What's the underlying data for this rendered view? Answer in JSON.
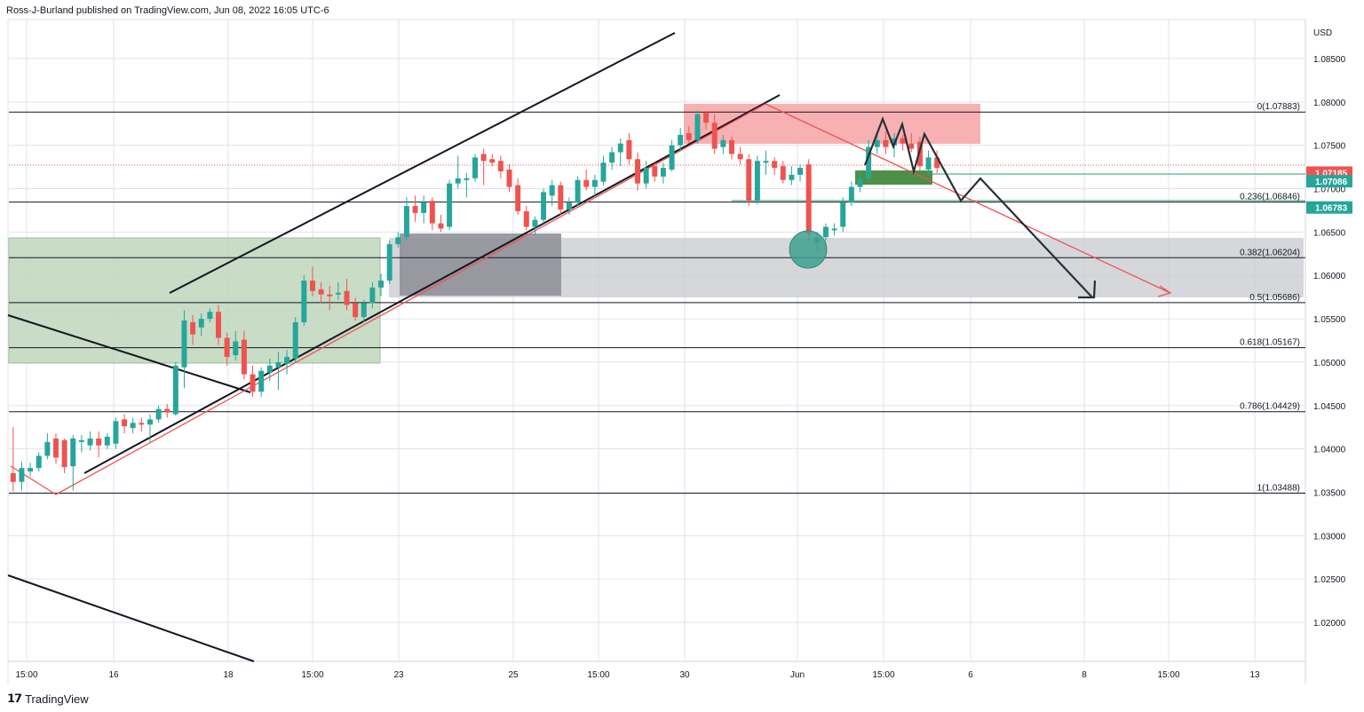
{
  "header": {
    "publisher_line": "Ross-J-Burland published on TradingView.com, Jun 08, 2022 16:05 UTC-6"
  },
  "footer": {
    "brand": "TradingView"
  },
  "axis": {
    "currency": "USD"
  },
  "colors": {
    "bull": "#26a69a",
    "bear": "#ef5350",
    "grid": "#e0e3eb",
    "fib_line": "#131722"
  },
  "chart_data": {
    "type": "candlestick",
    "instrument_currency": "USD",
    "y_range": [
      1.0155,
      1.0895
    ],
    "y_ticks": [
      "1.08500",
      "1.08000",
      "1.07500",
      "1.07000",
      "1.06500",
      "1.06000",
      "1.05500",
      "1.05000",
      "1.04500",
      "1.04000",
      "1.03500",
      "1.03000",
      "1.02500",
      "1.02000"
    ],
    "x_ticks": [
      "15:00",
      "16",
      "18",
      "15:00",
      "23",
      "25",
      "15:00",
      "30",
      "Jun",
      "15:00",
      "6",
      "8",
      "15:00",
      "13"
    ],
    "price_badges": [
      {
        "label": "1.07185",
        "value": 1.07185,
        "color": "#ef5350"
      },
      {
        "label": "1.07086",
        "value": 1.07086,
        "color": "#26a69a"
      },
      {
        "label": "1.06783",
        "value": 1.06783,
        "color": "#26a69a"
      }
    ],
    "fib_levels": [
      {
        "label": "0(1.07883)",
        "value": 1.07883
      },
      {
        "label": "0.236(1.06846)",
        "value": 1.06846
      },
      {
        "label": "0.382(1.06204)",
        "value": 1.06204
      },
      {
        "label": "0.5(1.05686)",
        "value": 1.05686
      },
      {
        "label": "0.618(1.05167)",
        "value": 1.05167
      },
      {
        "label": "0.786(1.04429)",
        "value": 1.04429
      },
      {
        "label": "1(1.03488)",
        "value": 1.03488
      }
    ],
    "candles": [
      {
        "o": 1.0372,
        "h": 1.0425,
        "l": 1.0351,
        "c": 1.0362
      },
      {
        "o": 1.0362,
        "h": 1.0385,
        "l": 1.0352,
        "c": 1.0378
      },
      {
        "o": 1.0374,
        "h": 1.0384,
        "l": 1.0368,
        "c": 1.0378
      },
      {
        "o": 1.0378,
        "h": 1.0396,
        "l": 1.0374,
        "c": 1.0392
      },
      {
        "o": 1.0392,
        "h": 1.0418,
        "l": 1.0388,
        "c": 1.0408
      },
      {
        "o": 1.0412,
        "h": 1.0418,
        "l": 1.0383,
        "c": 1.039
      },
      {
        "o": 1.041,
        "h": 1.0412,
        "l": 1.0372,
        "c": 1.0379
      },
      {
        "o": 1.038,
        "h": 1.0416,
        "l": 1.0352,
        "c": 1.0412
      },
      {
        "o": 1.0408,
        "h": 1.0416,
        "l": 1.0396,
        "c": 1.041
      },
      {
        "o": 1.0404,
        "h": 1.042,
        "l": 1.0398,
        "c": 1.0412
      },
      {
        "o": 1.0412,
        "h": 1.042,
        "l": 1.039,
        "c": 1.0404
      },
      {
        "o": 1.0404,
        "h": 1.0418,
        "l": 1.04,
        "c": 1.0414
      },
      {
        "o": 1.0406,
        "h": 1.0436,
        "l": 1.04,
        "c": 1.0432
      },
      {
        "o": 1.0434,
        "h": 1.044,
        "l": 1.0418,
        "c": 1.0426
      },
      {
        "o": 1.0424,
        "h": 1.0436,
        "l": 1.0418,
        "c": 1.043
      },
      {
        "o": 1.043,
        "h": 1.0436,
        "l": 1.042,
        "c": 1.0428
      },
      {
        "o": 1.0428,
        "h": 1.044,
        "l": 1.0408,
        "c": 1.0434
      },
      {
        "o": 1.0434,
        "h": 1.045,
        "l": 1.043,
        "c": 1.0446
      },
      {
        "o": 1.0446,
        "h": 1.0452,
        "l": 1.0436,
        "c": 1.0442
      },
      {
        "o": 1.044,
        "h": 1.05,
        "l": 1.0438,
        "c": 1.0496
      },
      {
        "o": 1.0494,
        "h": 1.056,
        "l": 1.047,
        "c": 1.0548
      },
      {
        "o": 1.0546,
        "h": 1.0554,
        "l": 1.052,
        "c": 1.0532
      },
      {
        "o": 1.054,
        "h": 1.0556,
        "l": 1.053,
        "c": 1.055
      },
      {
        "o": 1.055,
        "h": 1.0562,
        "l": 1.0546,
        "c": 1.0558
      },
      {
        "o": 1.0558,
        "h": 1.0566,
        "l": 1.052,
        "c": 1.0528
      },
      {
        "o": 1.0528,
        "h": 1.0534,
        "l": 1.0496,
        "c": 1.0506
      },
      {
        "o": 1.0508,
        "h": 1.0536,
        "l": 1.0502,
        "c": 1.0524
      },
      {
        "o": 1.0526,
        "h": 1.0536,
        "l": 1.048,
        "c": 1.0486
      },
      {
        "o": 1.0486,
        "h": 1.0496,
        "l": 1.046,
        "c": 1.0466
      },
      {
        "o": 1.0466,
        "h": 1.0494,
        "l": 1.046,
        "c": 1.049
      },
      {
        "o": 1.0488,
        "h": 1.0504,
        "l": 1.0478,
        "c": 1.0496
      },
      {
        "o": 1.0494,
        "h": 1.0512,
        "l": 1.0468,
        "c": 1.05
      },
      {
        "o": 1.0498,
        "h": 1.0514,
        "l": 1.0486,
        "c": 1.0506
      },
      {
        "o": 1.0504,
        "h": 1.0552,
        "l": 1.05,
        "c": 1.0546
      },
      {
        "o": 1.0546,
        "h": 1.06,
        "l": 1.0542,
        "c": 1.0594
      },
      {
        "o": 1.0594,
        "h": 1.061,
        "l": 1.0576,
        "c": 1.0582
      },
      {
        "o": 1.0584,
        "h": 1.0592,
        "l": 1.0568,
        "c": 1.0578
      },
      {
        "o": 1.0578,
        "h": 1.0588,
        "l": 1.056,
        "c": 1.0576
      },
      {
        "o": 1.0578,
        "h": 1.0592,
        "l": 1.0572,
        "c": 1.058
      },
      {
        "o": 1.0582,
        "h": 1.0596,
        "l": 1.056,
        "c": 1.0566
      },
      {
        "o": 1.0568,
        "h": 1.0574,
        "l": 1.0548,
        "c": 1.0552
      },
      {
        "o": 1.0552,
        "h": 1.0572,
        "l": 1.0546,
        "c": 1.0568
      },
      {
        "o": 1.0568,
        "h": 1.0592,
        "l": 1.0562,
        "c": 1.0586
      },
      {
        "o": 1.0586,
        "h": 1.0602,
        "l": 1.0576,
        "c": 1.0594
      },
      {
        "o": 1.0594,
        "h": 1.064,
        "l": 1.059,
        "c": 1.0636
      },
      {
        "o": 1.0636,
        "h": 1.065,
        "l": 1.0632,
        "c": 1.0644
      },
      {
        "o": 1.0644,
        "h": 1.069,
        "l": 1.064,
        "c": 1.068
      },
      {
        "o": 1.068,
        "h": 1.0692,
        "l": 1.0662,
        "c": 1.0672
      },
      {
        "o": 1.0672,
        "h": 1.0692,
        "l": 1.066,
        "c": 1.0684
      },
      {
        "o": 1.0686,
        "h": 1.069,
        "l": 1.0652,
        "c": 1.066
      },
      {
        "o": 1.066,
        "h": 1.067,
        "l": 1.065,
        "c": 1.0654
      },
      {
        "o": 1.0656,
        "h": 1.071,
        "l": 1.0652,
        "c": 1.0706
      },
      {
        "o": 1.0706,
        "h": 1.0738,
        "l": 1.07,
        "c": 1.0712
      },
      {
        "o": 1.071,
        "h": 1.0718,
        "l": 1.069,
        "c": 1.0712
      },
      {
        "o": 1.0712,
        "h": 1.074,
        "l": 1.0708,
        "c": 1.0736
      },
      {
        "o": 1.074,
        "h": 1.0746,
        "l": 1.0704,
        "c": 1.0732
      },
      {
        "o": 1.0734,
        "h": 1.074,
        "l": 1.0726,
        "c": 1.073
      },
      {
        "o": 1.0732,
        "h": 1.0738,
        "l": 1.0712,
        "c": 1.072
      },
      {
        "o": 1.0722,
        "h": 1.0728,
        "l": 1.0696,
        "c": 1.0702
      },
      {
        "o": 1.0704,
        "h": 1.0712,
        "l": 1.067,
        "c": 1.0674
      },
      {
        "o": 1.0674,
        "h": 1.068,
        "l": 1.0652,
        "c": 1.0656
      },
      {
        "o": 1.0656,
        "h": 1.0668,
        "l": 1.0646,
        "c": 1.0664
      },
      {
        "o": 1.0664,
        "h": 1.07,
        "l": 1.066,
        "c": 1.0696
      },
      {
        "o": 1.0692,
        "h": 1.071,
        "l": 1.068,
        "c": 1.0704
      },
      {
        "o": 1.0704,
        "h": 1.0708,
        "l": 1.067,
        "c": 1.0676
      },
      {
        "o": 1.0676,
        "h": 1.069,
        "l": 1.067,
        "c": 1.0684
      },
      {
        "o": 1.0684,
        "h": 1.0714,
        "l": 1.068,
        "c": 1.071
      },
      {
        "o": 1.071,
        "h": 1.0722,
        "l": 1.0698,
        "c": 1.0702
      },
      {
        "o": 1.0702,
        "h": 1.0716,
        "l": 1.069,
        "c": 1.071
      },
      {
        "o": 1.0708,
        "h": 1.0738,
        "l": 1.0704,
        "c": 1.073
      },
      {
        "o": 1.073,
        "h": 1.0748,
        "l": 1.0722,
        "c": 1.0742
      },
      {
        "o": 1.0742,
        "h": 1.0758,
        "l": 1.0726,
        "c": 1.0752
      },
      {
        "o": 1.0756,
        "h": 1.0764,
        "l": 1.0728,
        "c": 1.0734
      },
      {
        "o": 1.0734,
        "h": 1.0742,
        "l": 1.0698,
        "c": 1.0706
      },
      {
        "o": 1.0706,
        "h": 1.0732,
        "l": 1.07,
        "c": 1.0724
      },
      {
        "o": 1.0726,
        "h": 1.073,
        "l": 1.0708,
        "c": 1.0714
      },
      {
        "o": 1.0714,
        "h": 1.073,
        "l": 1.0706,
        "c": 1.0724
      },
      {
        "o": 1.0722,
        "h": 1.0756,
        "l": 1.072,
        "c": 1.075
      },
      {
        "o": 1.075,
        "h": 1.077,
        "l": 1.0744,
        "c": 1.0762
      },
      {
        "o": 1.0764,
        "h": 1.0772,
        "l": 1.0752,
        "c": 1.0756
      },
      {
        "o": 1.0756,
        "h": 1.079,
        "l": 1.0752,
        "c": 1.0786
      },
      {
        "o": 1.0788,
        "h": 1.079,
        "l": 1.0768,
        "c": 1.0776
      },
      {
        "o": 1.0776,
        "h": 1.0786,
        "l": 1.074,
        "c": 1.0746
      },
      {
        "o": 1.0748,
        "h": 1.0762,
        "l": 1.074,
        "c": 1.0756
      },
      {
        "o": 1.0756,
        "h": 1.076,
        "l": 1.0734,
        "c": 1.074
      },
      {
        "o": 1.074,
        "h": 1.0748,
        "l": 1.0728,
        "c": 1.0734
      },
      {
        "o": 1.0734,
        "h": 1.074,
        "l": 1.068,
        "c": 1.0686
      },
      {
        "o": 1.0686,
        "h": 1.0738,
        "l": 1.0682,
        "c": 1.0732
      },
      {
        "o": 1.073,
        "h": 1.0744,
        "l": 1.0716,
        "c": 1.0732
      },
      {
        "o": 1.0732,
        "h": 1.0736,
        "l": 1.0716,
        "c": 1.0724
      },
      {
        "o": 1.0726,
        "h": 1.0732,
        "l": 1.0706,
        "c": 1.071
      },
      {
        "o": 1.071,
        "h": 1.0726,
        "l": 1.0704,
        "c": 1.0716
      },
      {
        "o": 1.0716,
        "h": 1.0728,
        "l": 1.0708,
        "c": 1.0724
      },
      {
        "o": 1.0728,
        "h": 1.0734,
        "l": 1.064,
        "c": 1.0648
      },
      {
        "o": 1.0638,
        "h": 1.065,
        "l": 1.0628,
        "c": 1.0644
      },
      {
        "o": 1.0644,
        "h": 1.066,
        "l": 1.064,
        "c": 1.0656
      },
      {
        "o": 1.0652,
        "h": 1.066,
        "l": 1.0646,
        "c": 1.0654
      },
      {
        "o": 1.0656,
        "h": 1.069,
        "l": 1.065,
        "c": 1.0684
      },
      {
        "o": 1.0684,
        "h": 1.0708,
        "l": 1.068,
        "c": 1.0702
      },
      {
        "o": 1.0702,
        "h": 1.072,
        "l": 1.0696,
        "c": 1.0712
      },
      {
        "o": 1.0712,
        "h": 1.0756,
        "l": 1.0706,
        "c": 1.0748
      },
      {
        "o": 1.0748,
        "h": 1.0762,
        "l": 1.074,
        "c": 1.0756
      },
      {
        "o": 1.0756,
        "h": 1.0766,
        "l": 1.074,
        "c": 1.0748
      },
      {
        "o": 1.075,
        "h": 1.0764,
        "l": 1.0736,
        "c": 1.0758
      },
      {
        "o": 1.0758,
        "h": 1.0762,
        "l": 1.0744,
        "c": 1.0752
      },
      {
        "o": 1.0752,
        "h": 1.0764,
        "l": 1.0742,
        "c": 1.0746
      },
      {
        "o": 1.0754,
        "h": 1.076,
        "l": 1.072,
        "c": 1.0726
      },
      {
        "o": 1.0722,
        "h": 1.0744,
        "l": 1.0716,
        "c": 1.0736
      },
      {
        "o": 1.0736,
        "h": 1.0744,
        "l": 1.0718,
        "c": 1.0724
      }
    ]
  }
}
